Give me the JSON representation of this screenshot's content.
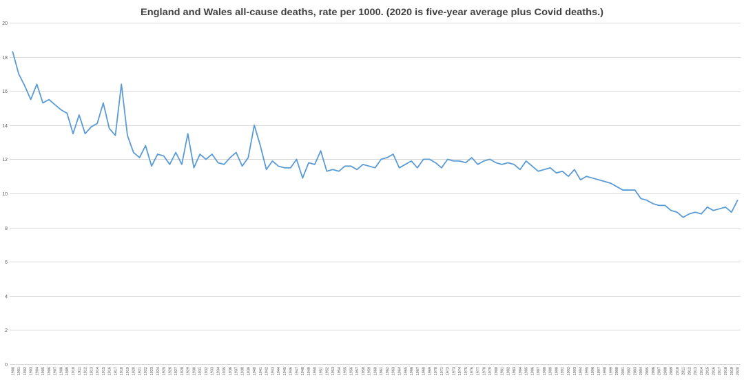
{
  "chart_data": {
    "type": "line",
    "title": "England and Wales all-cause deaths, rate per 1000. (2020 is five-year average plus Covid deaths.)",
    "xlabel": "",
    "ylabel": "",
    "ylim": [
      0,
      20
    ],
    "yticks": [
      0,
      2,
      4,
      6,
      8,
      10,
      12,
      14,
      16,
      18,
      20
    ],
    "grid": "horizontal",
    "legend": "none",
    "colors": {
      "line": "#5b9bd5",
      "grid": "#d9d9d9",
      "axis_text": "#595959",
      "title_text": "#404040"
    },
    "categories": [
      "1900",
      "1901",
      "1902",
      "1903",
      "1904",
      "1905",
      "1906",
      "1907",
      "1908",
      "1909",
      "1910",
      "1911",
      "1912",
      "1913",
      "1914",
      "1915",
      "1916",
      "1917",
      "1918",
      "1919",
      "1920",
      "1921",
      "1922",
      "1923",
      "1924",
      "1925",
      "1926",
      "1927",
      "1928",
      "1929",
      "1930",
      "1931",
      "1932",
      "1933",
      "1934",
      "1935",
      "1936",
      "1937",
      "1938",
      "1939",
      "1940",
      "1941",
      "1942",
      "1943",
      "1944",
      "1945",
      "1946",
      "1947",
      "1948",
      "1949",
      "1950",
      "1951",
      "1952",
      "1953",
      "1954",
      "1955",
      "1956",
      "1957",
      "1958",
      "1959",
      "1960",
      "1961",
      "1962",
      "1963",
      "1964",
      "1965",
      "1966",
      "1967",
      "1968",
      "1969",
      "1970",
      "1971",
      "1972",
      "1973",
      "1974",
      "1975",
      "1976",
      "1977",
      "1978",
      "1979",
      "1980",
      "1981",
      "1982",
      "1983",
      "1984",
      "1985",
      "1986",
      "1987",
      "1988",
      "1989",
      "1990",
      "1991",
      "1992",
      "1993",
      "1994",
      "1995",
      "1996",
      "1997",
      "1998",
      "1999",
      "2000",
      "2001",
      "2002",
      "2003",
      "2004",
      "2005",
      "2006",
      "2007",
      "2008",
      "2009",
      "2010",
      "2011",
      "2012",
      "2013",
      "2014",
      "2015",
      "2016",
      "2017",
      "2018",
      "2019",
      "2020"
    ],
    "series": [
      {
        "values": [
          18.3,
          17.0,
          16.3,
          15.5,
          16.4,
          15.3,
          15.5,
          15.2,
          14.9,
          14.7,
          13.5,
          14.6,
          13.5,
          13.9,
          14.1,
          15.3,
          13.8,
          13.4,
          16.4,
          13.4,
          12.4,
          12.1,
          12.8,
          11.6,
          12.3,
          12.2,
          11.7,
          12.4,
          11.7,
          13.5,
          11.5,
          12.3,
          12.0,
          12.3,
          11.8,
          11.7,
          12.1,
          12.4,
          11.6,
          12.1,
          14.0,
          12.8,
          11.4,
          11.9,
          11.6,
          11.5,
          11.5,
          12.0,
          10.9,
          11.8,
          11.7,
          12.5,
          11.3,
          11.4,
          11.3,
          11.6,
          11.6,
          11.4,
          11.7,
          11.6,
          11.5,
          12.0,
          12.1,
          12.3,
          11.5,
          11.7,
          11.9,
          11.5,
          12.0,
          12.0,
          11.8,
          11.5,
          12.0,
          11.9,
          11.9,
          11.8,
          12.1,
          11.7,
          11.9,
          12.0,
          11.8,
          11.7,
          11.8,
          11.7,
          11.4,
          11.9,
          11.6,
          11.3,
          11.4,
          11.5,
          11.2,
          11.3,
          11.0,
          11.4,
          10.8,
          11.0,
          10.9,
          10.8,
          10.7,
          10.6,
          10.4,
          10.2,
          10.2,
          10.2,
          9.7,
          9.6,
          9.4,
          9.3,
          9.3,
          9.0,
          8.9,
          8.6,
          8.8,
          8.9,
          8.8,
          9.2,
          9.0,
          9.1,
          9.2,
          8.9,
          9.6
        ]
      }
    ]
  }
}
